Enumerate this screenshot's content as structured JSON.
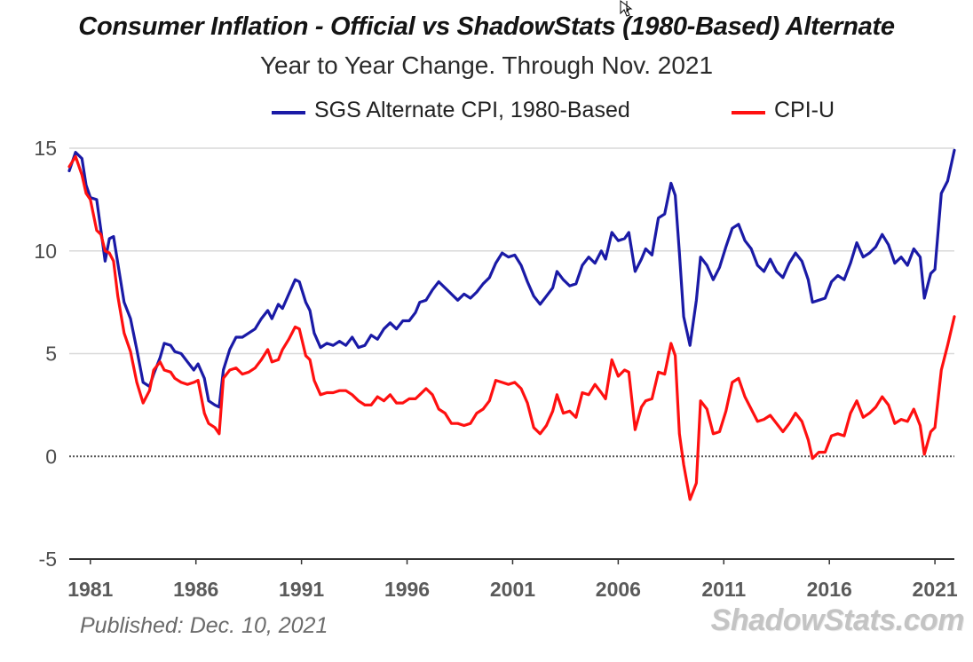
{
  "chart_data": {
    "type": "line",
    "title": "Consumer Inflation - Official vs ShadowStats (1980-Based) Alternate",
    "subtitle": "Year to Year Change. Through Nov. 2021",
    "xlabel": "",
    "ylabel": "",
    "xlim": [
      1980.0,
      2021.92
    ],
    "ylim": [
      -5,
      15
    ],
    "yticks": [
      -5,
      0,
      5,
      10,
      15
    ],
    "xticks": [
      1981,
      1986,
      1991,
      1996,
      2001,
      2006,
      2011,
      2016,
      2021
    ],
    "grid": true,
    "legend_position": "top",
    "series": [
      {
        "name": "SGS Alternate CPI, 1980-Based",
        "color": "#1a1aa6",
        "points": [
          [
            1980.0,
            13.9
          ],
          [
            1980.3,
            14.8
          ],
          [
            1980.6,
            14.5
          ],
          [
            1980.8,
            13.2
          ],
          [
            1981.0,
            12.6
          ],
          [
            1981.3,
            12.5
          ],
          [
            1981.5,
            11.0
          ],
          [
            1981.7,
            9.5
          ],
          [
            1981.9,
            10.6
          ],
          [
            1982.1,
            10.7
          ],
          [
            1982.3,
            9.4
          ],
          [
            1982.6,
            7.5
          ],
          [
            1982.9,
            6.7
          ],
          [
            1983.2,
            5.2
          ],
          [
            1983.5,
            3.6
          ],
          [
            1983.8,
            3.4
          ],
          [
            1984.0,
            4.0
          ],
          [
            1984.3,
            4.8
          ],
          [
            1984.5,
            5.5
          ],
          [
            1984.8,
            5.4
          ],
          [
            1985.0,
            5.1
          ],
          [
            1985.3,
            5.0
          ],
          [
            1985.6,
            4.6
          ],
          [
            1985.9,
            4.2
          ],
          [
            1986.1,
            4.5
          ],
          [
            1986.4,
            3.8
          ],
          [
            1986.6,
            2.7
          ],
          [
            1986.9,
            2.5
          ],
          [
            1987.1,
            2.4
          ],
          [
            1987.3,
            4.2
          ],
          [
            1987.6,
            5.2
          ],
          [
            1987.9,
            5.8
          ],
          [
            1988.2,
            5.8
          ],
          [
            1988.5,
            6.0
          ],
          [
            1988.8,
            6.2
          ],
          [
            1989.1,
            6.7
          ],
          [
            1989.4,
            7.1
          ],
          [
            1989.6,
            6.7
          ],
          [
            1989.9,
            7.4
          ],
          [
            1990.1,
            7.2
          ],
          [
            1990.4,
            7.9
          ],
          [
            1990.7,
            8.6
          ],
          [
            1990.9,
            8.5
          ],
          [
            1991.2,
            7.5
          ],
          [
            1991.4,
            7.1
          ],
          [
            1991.6,
            6.0
          ],
          [
            1991.9,
            5.3
          ],
          [
            1992.2,
            5.5
          ],
          [
            1992.5,
            5.4
          ],
          [
            1992.8,
            5.6
          ],
          [
            1993.1,
            5.4
          ],
          [
            1993.4,
            5.8
          ],
          [
            1993.7,
            5.3
          ],
          [
            1994.0,
            5.4
          ],
          [
            1994.3,
            5.9
          ],
          [
            1994.6,
            5.7
          ],
          [
            1994.9,
            6.2
          ],
          [
            1995.2,
            6.5
          ],
          [
            1995.5,
            6.2
          ],
          [
            1995.8,
            6.6
          ],
          [
            1996.1,
            6.6
          ],
          [
            1996.4,
            7.0
          ],
          [
            1996.6,
            7.5
          ],
          [
            1996.9,
            7.6
          ],
          [
            1997.2,
            8.1
          ],
          [
            1997.5,
            8.5
          ],
          [
            1997.8,
            8.2
          ],
          [
            1998.1,
            7.9
          ],
          [
            1998.4,
            7.6
          ],
          [
            1998.7,
            7.9
          ],
          [
            1999.0,
            7.7
          ],
          [
            1999.3,
            8.0
          ],
          [
            1999.6,
            8.4
          ],
          [
            1999.9,
            8.7
          ],
          [
            2000.2,
            9.4
          ],
          [
            2000.5,
            9.9
          ],
          [
            2000.8,
            9.7
          ],
          [
            2001.1,
            9.8
          ],
          [
            2001.4,
            9.3
          ],
          [
            2001.7,
            8.5
          ],
          [
            2002.0,
            7.8
          ],
          [
            2002.3,
            7.4
          ],
          [
            2002.6,
            7.8
          ],
          [
            2002.9,
            8.2
          ],
          [
            2003.1,
            9.0
          ],
          [
            2003.4,
            8.6
          ],
          [
            2003.7,
            8.3
          ],
          [
            2004.0,
            8.4
          ],
          [
            2004.3,
            9.3
          ],
          [
            2004.6,
            9.7
          ],
          [
            2004.9,
            9.4
          ],
          [
            2005.2,
            10.0
          ],
          [
            2005.4,
            9.6
          ],
          [
            2005.7,
            10.9
          ],
          [
            2006.0,
            10.5
          ],
          [
            2006.3,
            10.6
          ],
          [
            2006.5,
            10.9
          ],
          [
            2006.8,
            9.0
          ],
          [
            2007.1,
            9.6
          ],
          [
            2007.3,
            10.1
          ],
          [
            2007.6,
            9.8
          ],
          [
            2007.9,
            11.6
          ],
          [
            2008.2,
            11.8
          ],
          [
            2008.5,
            13.3
          ],
          [
            2008.7,
            12.7
          ],
          [
            2008.9,
            9.9
          ],
          [
            2009.1,
            6.8
          ],
          [
            2009.4,
            5.4
          ],
          [
            2009.7,
            7.6
          ],
          [
            2009.9,
            9.7
          ],
          [
            2010.2,
            9.3
          ],
          [
            2010.5,
            8.6
          ],
          [
            2010.8,
            9.2
          ],
          [
            2011.1,
            10.2
          ],
          [
            2011.4,
            11.1
          ],
          [
            2011.7,
            11.3
          ],
          [
            2012.0,
            10.5
          ],
          [
            2012.3,
            10.1
          ],
          [
            2012.6,
            9.3
          ],
          [
            2012.9,
            9.0
          ],
          [
            2013.2,
            9.6
          ],
          [
            2013.5,
            9.0
          ],
          [
            2013.8,
            8.7
          ],
          [
            2014.1,
            9.4
          ],
          [
            2014.4,
            9.9
          ],
          [
            2014.7,
            9.5
          ],
          [
            2015.0,
            8.6
          ],
          [
            2015.2,
            7.5
          ],
          [
            2015.5,
            7.6
          ],
          [
            2015.8,
            7.7
          ],
          [
            2016.1,
            8.5
          ],
          [
            2016.4,
            8.8
          ],
          [
            2016.7,
            8.6
          ],
          [
            2017.0,
            9.4
          ],
          [
            2017.3,
            10.4
          ],
          [
            2017.6,
            9.7
          ],
          [
            2017.9,
            9.9
          ],
          [
            2018.2,
            10.2
          ],
          [
            2018.5,
            10.8
          ],
          [
            2018.8,
            10.3
          ],
          [
            2019.1,
            9.4
          ],
          [
            2019.4,
            9.7
          ],
          [
            2019.7,
            9.3
          ],
          [
            2020.0,
            10.1
          ],
          [
            2020.3,
            9.7
          ],
          [
            2020.5,
            7.7
          ],
          [
            2020.8,
            8.9
          ],
          [
            2021.0,
            9.1
          ],
          [
            2021.3,
            12.8
          ],
          [
            2021.6,
            13.4
          ],
          [
            2021.92,
            14.9
          ]
        ]
      },
      {
        "name": "CPI-U",
        "color": "#ff1010",
        "points": [
          [
            1980.0,
            14.1
          ],
          [
            1980.3,
            14.6
          ],
          [
            1980.6,
            13.7
          ],
          [
            1980.8,
            12.8
          ],
          [
            1981.0,
            12.5
          ],
          [
            1981.3,
            11.0
          ],
          [
            1981.5,
            10.8
          ],
          [
            1981.7,
            10.0
          ],
          [
            1981.9,
            9.9
          ],
          [
            1982.1,
            9.5
          ],
          [
            1982.3,
            7.8
          ],
          [
            1982.6,
            6.0
          ],
          [
            1982.9,
            5.1
          ],
          [
            1983.2,
            3.6
          ],
          [
            1983.5,
            2.6
          ],
          [
            1983.8,
            3.2
          ],
          [
            1984.0,
            4.2
          ],
          [
            1984.3,
            4.6
          ],
          [
            1984.5,
            4.2
          ],
          [
            1984.8,
            4.1
          ],
          [
            1985.0,
            3.8
          ],
          [
            1985.3,
            3.6
          ],
          [
            1985.6,
            3.5
          ],
          [
            1985.9,
            3.6
          ],
          [
            1986.1,
            3.7
          ],
          [
            1986.4,
            2.1
          ],
          [
            1986.6,
            1.6
          ],
          [
            1986.9,
            1.4
          ],
          [
            1987.1,
            1.1
          ],
          [
            1987.3,
            3.8
          ],
          [
            1987.6,
            4.2
          ],
          [
            1987.9,
            4.3
          ],
          [
            1988.2,
            4.0
          ],
          [
            1988.5,
            4.1
          ],
          [
            1988.8,
            4.3
          ],
          [
            1989.1,
            4.7
          ],
          [
            1989.4,
            5.2
          ],
          [
            1989.6,
            4.6
          ],
          [
            1989.9,
            4.7
          ],
          [
            1990.1,
            5.2
          ],
          [
            1990.4,
            5.7
          ],
          [
            1990.7,
            6.3
          ],
          [
            1990.9,
            6.2
          ],
          [
            1991.2,
            4.9
          ],
          [
            1991.4,
            4.7
          ],
          [
            1991.6,
            3.7
          ],
          [
            1991.9,
            3.0
          ],
          [
            1992.2,
            3.1
          ],
          [
            1992.5,
            3.1
          ],
          [
            1992.8,
            3.2
          ],
          [
            1993.1,
            3.2
          ],
          [
            1993.4,
            3.0
          ],
          [
            1993.7,
            2.7
          ],
          [
            1994.0,
            2.5
          ],
          [
            1994.3,
            2.5
          ],
          [
            1994.6,
            2.9
          ],
          [
            1994.9,
            2.7
          ],
          [
            1995.2,
            3.0
          ],
          [
            1995.5,
            2.6
          ],
          [
            1995.8,
            2.6
          ],
          [
            1996.1,
            2.8
          ],
          [
            1996.4,
            2.8
          ],
          [
            1996.6,
            3.0
          ],
          [
            1996.9,
            3.3
          ],
          [
            1997.2,
            3.0
          ],
          [
            1997.5,
            2.3
          ],
          [
            1997.8,
            2.1
          ],
          [
            1998.1,
            1.6
          ],
          [
            1998.4,
            1.6
          ],
          [
            1998.7,
            1.5
          ],
          [
            1999.0,
            1.6
          ],
          [
            1999.3,
            2.1
          ],
          [
            1999.6,
            2.3
          ],
          [
            1999.9,
            2.7
          ],
          [
            2000.2,
            3.7
          ],
          [
            2000.5,
            3.6
          ],
          [
            2000.8,
            3.5
          ],
          [
            2001.1,
            3.6
          ],
          [
            2001.4,
            3.3
          ],
          [
            2001.7,
            2.6
          ],
          [
            2002.0,
            1.4
          ],
          [
            2002.3,
            1.1
          ],
          [
            2002.6,
            1.5
          ],
          [
            2002.9,
            2.2
          ],
          [
            2003.1,
            3.0
          ],
          [
            2003.4,
            2.1
          ],
          [
            2003.7,
            2.2
          ],
          [
            2004.0,
            1.9
          ],
          [
            2004.3,
            3.1
          ],
          [
            2004.6,
            3.0
          ],
          [
            2004.9,
            3.5
          ],
          [
            2005.2,
            3.1
          ],
          [
            2005.4,
            2.8
          ],
          [
            2005.7,
            4.7
          ],
          [
            2006.0,
            3.9
          ],
          [
            2006.3,
            4.2
          ],
          [
            2006.5,
            4.1
          ],
          [
            2006.8,
            1.3
          ],
          [
            2007.1,
            2.4
          ],
          [
            2007.3,
            2.7
          ],
          [
            2007.6,
            2.8
          ],
          [
            2007.9,
            4.1
          ],
          [
            2008.2,
            4.0
          ],
          [
            2008.5,
            5.5
          ],
          [
            2008.7,
            4.9
          ],
          [
            2008.9,
            1.1
          ],
          [
            2009.1,
            -0.4
          ],
          [
            2009.4,
            -2.1
          ],
          [
            2009.7,
            -1.3
          ],
          [
            2009.9,
            2.7
          ],
          [
            2010.2,
            2.3
          ],
          [
            2010.5,
            1.1
          ],
          [
            2010.8,
            1.2
          ],
          [
            2011.1,
            2.2
          ],
          [
            2011.4,
            3.6
          ],
          [
            2011.7,
            3.8
          ],
          [
            2012.0,
            2.9
          ],
          [
            2012.3,
            2.3
          ],
          [
            2012.6,
            1.7
          ],
          [
            2012.9,
            1.8
          ],
          [
            2013.2,
            2.0
          ],
          [
            2013.5,
            1.6
          ],
          [
            2013.8,
            1.2
          ],
          [
            2014.1,
            1.6
          ],
          [
            2014.4,
            2.1
          ],
          [
            2014.7,
            1.7
          ],
          [
            2015.0,
            0.8
          ],
          [
            2015.2,
            -0.1
          ],
          [
            2015.5,
            0.2
          ],
          [
            2015.8,
            0.2
          ],
          [
            2016.1,
            1.0
          ],
          [
            2016.4,
            1.1
          ],
          [
            2016.7,
            1.0
          ],
          [
            2017.0,
            2.1
          ],
          [
            2017.3,
            2.7
          ],
          [
            2017.6,
            1.9
          ],
          [
            2017.9,
            2.1
          ],
          [
            2018.2,
            2.4
          ],
          [
            2018.5,
            2.9
          ],
          [
            2018.8,
            2.5
          ],
          [
            2019.1,
            1.6
          ],
          [
            2019.4,
            1.8
          ],
          [
            2019.7,
            1.7
          ],
          [
            2020.0,
            2.3
          ],
          [
            2020.3,
            1.5
          ],
          [
            2020.5,
            0.1
          ],
          [
            2020.8,
            1.2
          ],
          [
            2021.0,
            1.4
          ],
          [
            2021.3,
            4.2
          ],
          [
            2021.6,
            5.4
          ],
          [
            2021.92,
            6.8
          ]
        ]
      }
    ],
    "source_note": "Published: Dec. 10, 2021",
    "watermark": "ShadowStats.com"
  }
}
